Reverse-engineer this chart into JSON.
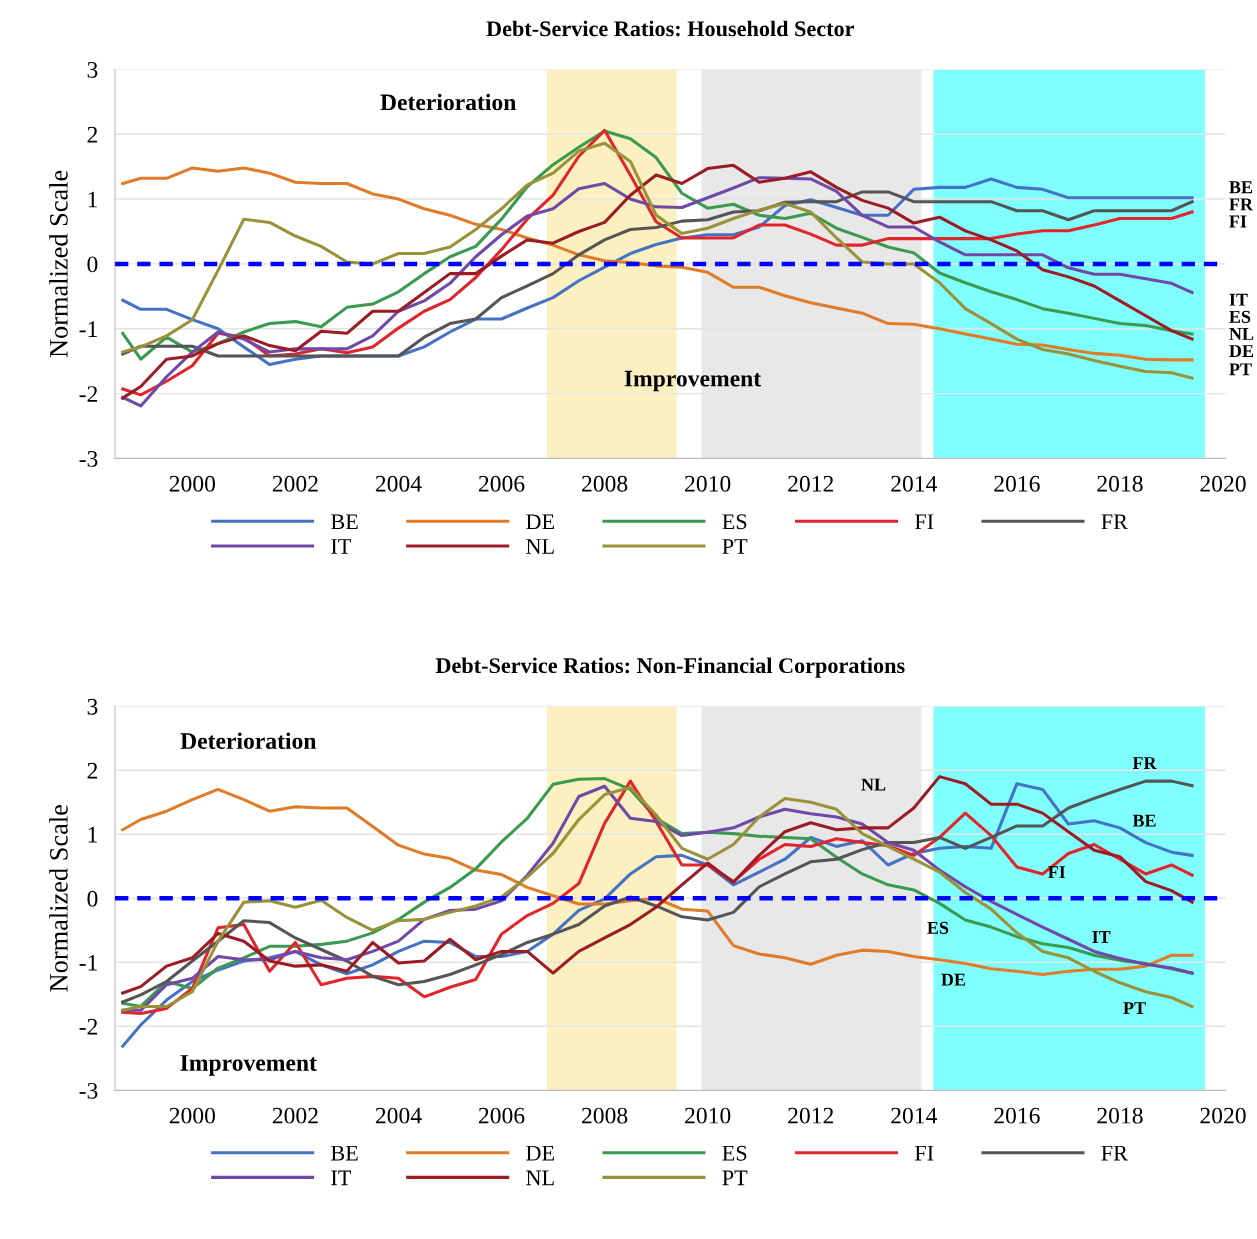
{
  "chart_data": [
    {
      "type": "line",
      "title": "Debt-Service Ratios: Household Sector",
      "ylabel": "Normalized Scale",
      "x": [
        1998.65,
        1999,
        1999.5,
        2000,
        2000.5,
        2001,
        2001.5,
        2002,
        2002.5,
        2003,
        2003.5,
        2004,
        2004.5,
        2005,
        2005.5,
        2006,
        2006.5,
        2007,
        2007.5,
        2008,
        2008.5,
        2009,
        2009.5,
        2010,
        2010.5,
        2011,
        2011.5,
        2012,
        2012.5,
        2013,
        2013.5,
        2014,
        2014.5,
        2015,
        2015.5,
        2016,
        2016.5,
        2017,
        2017.5,
        2018,
        2018.5,
        2019,
        2019.4
      ],
      "series": [
        {
          "name": "BE",
          "color": "#4472c4",
          "values": [
            -0.56,
            -0.7,
            -0.7,
            -0.86,
            -1.0,
            -1.28,
            -1.55,
            -1.47,
            -1.42,
            -1.42,
            -1.42,
            -1.42,
            -1.28,
            -1.05,
            -0.85,
            -0.85,
            -0.68,
            -0.52,
            -0.26,
            -0.05,
            0.16,
            0.3,
            0.4,
            0.45,
            0.45,
            0.57,
            0.9,
            0.99,
            0.87,
            0.75,
            0.75,
            1.15,
            1.18,
            1.18,
            1.31,
            1.18,
            1.15,
            1.02,
            1.02,
            1.02,
            1.02,
            1.02,
            1.02
          ]
        },
        {
          "name": "DE",
          "color": "#e07b28",
          "values": [
            1.24,
            1.32,
            1.32,
            1.48,
            1.43,
            1.48,
            1.4,
            1.26,
            1.24,
            1.24,
            1.08,
            1.0,
            0.85,
            0.75,
            0.61,
            0.53,
            0.4,
            0.29,
            0.14,
            0.05,
            0.02,
            -0.03,
            -0.05,
            -0.13,
            -0.36,
            -0.36,
            -0.49,
            -0.6,
            -0.68,
            -0.76,
            -0.92,
            -0.93,
            -1.0,
            -1.08,
            -1.16,
            -1.24,
            -1.25,
            -1.32,
            -1.38,
            -1.41,
            -1.47,
            -1.48,
            -1.48
          ]
        },
        {
          "name": "ES",
          "color": "#3a9a4f",
          "values": [
            -1.07,
            -1.47,
            -1.13,
            -1.36,
            -1.23,
            -1.05,
            -0.92,
            -0.89,
            -0.97,
            -0.67,
            -0.62,
            -0.43,
            -0.15,
            0.11,
            0.27,
            0.69,
            1.19,
            1.53,
            1.8,
            2.05,
            1.93,
            1.64,
            1.09,
            0.86,
            0.92,
            0.75,
            0.7,
            0.78,
            0.55,
            0.41,
            0.26,
            0.17,
            -0.14,
            -0.29,
            -0.43,
            -0.55,
            -0.69,
            -0.76,
            -0.84,
            -0.92,
            -0.95,
            -1.03,
            -1.08
          ]
        },
        {
          "name": "FI",
          "color": "#e0262a",
          "values": [
            -1.93,
            -2.02,
            -1.81,
            -1.57,
            -1.07,
            -1.13,
            -1.42,
            -1.39,
            -1.31,
            -1.37,
            -1.28,
            -0.99,
            -0.73,
            -0.55,
            -0.21,
            0.22,
            0.69,
            1.06,
            1.66,
            2.06,
            1.37,
            0.65,
            0.4,
            0.4,
            0.4,
            0.6,
            0.6,
            0.46,
            0.29,
            0.29,
            0.39,
            0.39,
            0.39,
            0.39,
            0.39,
            0.46,
            0.51,
            0.51,
            0.6,
            0.7,
            0.7,
            0.7,
            0.8
          ]
        },
        {
          "name": "FR",
          "color": "#555555",
          "values": [
            -1.39,
            -1.27,
            -1.27,
            -1.27,
            -1.42,
            -1.42,
            -1.42,
            -1.42,
            -1.42,
            -1.42,
            -1.42,
            -1.42,
            -1.13,
            -0.92,
            -0.85,
            -0.52,
            -0.34,
            -0.15,
            0.14,
            0.37,
            0.53,
            0.56,
            0.66,
            0.68,
            0.8,
            0.82,
            0.95,
            0.96,
            0.96,
            1.11,
            1.11,
            0.96,
            0.96,
            0.96,
            0.96,
            0.82,
            0.82,
            0.68,
            0.82,
            0.82,
            0.82,
            0.82,
            0.96
          ]
        },
        {
          "name": "IT",
          "color": "#7048a8",
          "values": [
            -2.06,
            -2.19,
            -1.74,
            -1.36,
            -1.05,
            -1.16,
            -1.36,
            -1.31,
            -1.31,
            -1.31,
            -1.11,
            -0.73,
            -0.57,
            -0.3,
            0.11,
            0.45,
            0.74,
            0.85,
            1.16,
            1.24,
            1.0,
            0.88,
            0.87,
            1.02,
            1.17,
            1.33,
            1.32,
            1.31,
            1.12,
            0.75,
            0.57,
            0.57,
            0.34,
            0.14,
            0.14,
            0.14,
            0.14,
            -0.06,
            -0.16,
            -0.16,
            -0.23,
            -0.3,
            -0.44
          ]
        },
        {
          "name": "NL",
          "color": "#9b1c24",
          "values": [
            -2.07,
            -1.89,
            -1.47,
            -1.42,
            -1.23,
            -1.11,
            -1.26,
            -1.34,
            -1.04,
            -1.07,
            -0.73,
            -0.73,
            -0.44,
            -0.15,
            -0.15,
            0.12,
            0.37,
            0.32,
            0.5,
            0.64,
            1.06,
            1.37,
            1.24,
            1.47,
            1.52,
            1.26,
            1.32,
            1.42,
            1.18,
            0.98,
            0.86,
            0.63,
            0.72,
            0.51,
            0.37,
            0.2,
            -0.09,
            -0.2,
            -0.34,
            -0.57,
            -0.8,
            -1.03,
            -1.16
          ]
        },
        {
          "name": "PT",
          "color": "#9a9238",
          "values": [
            -1.36,
            -1.28,
            -1.11,
            -0.86,
            -0.1,
            0.69,
            0.64,
            0.43,
            0.27,
            0.03,
            0.0,
            0.16,
            0.16,
            0.26,
            0.53,
            0.85,
            1.22,
            1.4,
            1.74,
            1.86,
            1.58,
            0.75,
            0.47,
            0.55,
            0.7,
            0.83,
            0.93,
            0.8,
            0.4,
            0.03,
            0.0,
            0.0,
            -0.29,
            -0.69,
            -0.92,
            -1.16,
            -1.32,
            -1.39,
            -1.49,
            -1.58,
            -1.66,
            -1.68,
            -1.76
          ]
        }
      ],
      "xlim": [
        1998.5,
        2020.05
      ],
      "ylim": [
        -3,
        3
      ],
      "xticks": [
        2000,
        2002,
        2004,
        2006,
        2008,
        2010,
        2012,
        2014,
        2016,
        2018,
        2020
      ],
      "yticks": [
        -3,
        -2,
        -1,
        0,
        1,
        2,
        3
      ],
      "ref_lines": [
        {
          "axis": "y",
          "value": 0,
          "color": "#0000ff",
          "line_style": "dashed"
        }
      ],
      "bands": [
        {
          "axis": "x",
          "from": 2006.88,
          "to": 2009.4,
          "color": "#fdf0c0"
        },
        {
          "axis": "x",
          "from": 2009.88,
          "to": 2014.15,
          "color": "#e8e8e8"
        },
        {
          "axis": "x",
          "from": 2014.38,
          "to": 2019.65,
          "color": "#80ffff"
        }
      ],
      "annotations": [
        "Deterioration",
        "Improvement"
      ],
      "grid": "y",
      "legend": "bottom",
      "line_style": "solid",
      "marker": "none"
    },
    {
      "type": "line",
      "title": "Debt-Service Ratios: Non-Financial Corporations",
      "ylabel": "Normalized Scale",
      "x": [
        1998.65,
        1999,
        1999.5,
        2000,
        2000.5,
        2001,
        2001.5,
        2002,
        2002.5,
        2003,
        2003.5,
        2004,
        2004.5,
        2005,
        2005.5,
        2006,
        2006.5,
        2007,
        2007.5,
        2008,
        2008.5,
        2009,
        2009.5,
        2010,
        2010.5,
        2011,
        2011.5,
        2012,
        2012.5,
        2013,
        2013.5,
        2014,
        2014.5,
        2015,
        2015.5,
        2016,
        2016.5,
        2017,
        2017.5,
        2018,
        2018.5,
        2019,
        2019.4
      ],
      "series": [
        {
          "name": "BE",
          "color": "#4472c4",
          "values": [
            -2.31,
            -1.98,
            -1.59,
            -1.3,
            -1.12,
            -0.98,
            -0.93,
            -0.83,
            -1.04,
            -1.18,
            -1.04,
            -0.83,
            -0.67,
            -0.69,
            -0.91,
            -0.91,
            -0.83,
            -0.56,
            -0.19,
            -0.01,
            0.38,
            0.65,
            0.67,
            0.52,
            0.21,
            0.41,
            0.61,
            0.95,
            0.81,
            0.9,
            0.52,
            0.7,
            0.78,
            0.81,
            0.78,
            1.79,
            1.7,
            1.16,
            1.21,
            1.1,
            0.87,
            0.72,
            0.67
          ]
        },
        {
          "name": "DE",
          "color": "#e07b28",
          "values": [
            1.07,
            1.23,
            1.36,
            1.54,
            1.7,
            1.54,
            1.36,
            1.43,
            1.41,
            1.41,
            1.12,
            0.83,
            0.69,
            0.62,
            0.44,
            0.37,
            0.17,
            0.04,
            -0.09,
            -0.09,
            -0.04,
            0.0,
            -0.17,
            -0.2,
            -0.74,
            -0.87,
            -0.93,
            -1.03,
            -0.89,
            -0.81,
            -0.83,
            -0.91,
            -0.96,
            -1.02,
            -1.1,
            -1.14,
            -1.19,
            -1.14,
            -1.11,
            -1.11,
            -1.06,
            -0.89,
            -0.89
          ]
        },
        {
          "name": "ES",
          "color": "#3a9a4f",
          "values": [
            -1.64,
            -1.69,
            -1.3,
            -1.41,
            -1.09,
            -0.93,
            -0.75,
            -0.75,
            -0.72,
            -0.67,
            -0.54,
            -0.33,
            -0.06,
            0.17,
            0.46,
            0.88,
            1.25,
            1.78,
            1.86,
            1.87,
            1.7,
            1.25,
            1.01,
            1.03,
            1.01,
            0.97,
            0.95,
            0.93,
            0.64,
            0.38,
            0.21,
            0.13,
            -0.08,
            -0.34,
            -0.45,
            -0.6,
            -0.71,
            -0.77,
            -0.89,
            -0.97,
            -1.02,
            -1.1,
            -1.17
          ]
        },
        {
          "name": "FI",
          "color": "#e0262a",
          "values": [
            -1.78,
            -1.8,
            -1.72,
            -1.41,
            -0.46,
            -0.41,
            -1.14,
            -0.69,
            -1.35,
            -1.25,
            -1.22,
            -1.25,
            -1.54,
            -1.39,
            -1.27,
            -0.56,
            -0.27,
            -0.08,
            0.23,
            1.17,
            1.83,
            1.2,
            0.52,
            0.52,
            0.26,
            0.61,
            0.84,
            0.81,
            0.93,
            0.87,
            0.82,
            0.67,
            0.95,
            1.33,
            0.98,
            0.49,
            0.38,
            0.7,
            0.84,
            0.61,
            0.38,
            0.52,
            0.36
          ]
        },
        {
          "name": "FR",
          "color": "#555555",
          "values": [
            -1.62,
            -1.51,
            -1.3,
            -0.98,
            -0.67,
            -0.35,
            -0.38,
            -0.62,
            -0.8,
            -0.98,
            -1.22,
            -1.35,
            -1.3,
            -1.19,
            -1.04,
            -0.88,
            -0.69,
            -0.56,
            -0.41,
            -0.12,
            0.02,
            -0.12,
            -0.29,
            -0.34,
            -0.22,
            0.18,
            0.38,
            0.57,
            0.61,
            0.76,
            0.87,
            0.87,
            0.95,
            0.78,
            0.95,
            1.13,
            1.13,
            1.41,
            1.56,
            1.7,
            1.83,
            1.83,
            1.76
          ]
        },
        {
          "name": "IT",
          "color": "#7048a8",
          "values": [
            -1.75,
            -1.75,
            -1.35,
            -1.25,
            -0.91,
            -0.96,
            -0.96,
            -0.83,
            -0.93,
            -0.96,
            -0.83,
            -0.67,
            -0.33,
            -0.19,
            -0.17,
            -0.04,
            0.36,
            0.86,
            1.59,
            1.75,
            1.25,
            1.2,
            0.98,
            1.03,
            1.1,
            1.27,
            1.39,
            1.32,
            1.27,
            1.16,
            0.87,
            0.75,
            0.44,
            0.18,
            -0.05,
            -0.25,
            -0.45,
            -0.64,
            -0.83,
            -0.94,
            -1.03,
            -1.09,
            -1.17
          ]
        },
        {
          "name": "NL",
          "color": "#9b1c24",
          "values": [
            -1.48,
            -1.38,
            -1.06,
            -0.93,
            -0.55,
            -0.67,
            -0.98,
            -1.06,
            -1.04,
            -1.14,
            -0.69,
            -1.01,
            -0.98,
            -0.64,
            -0.96,
            -0.83,
            -0.83,
            -1.17,
            -0.83,
            -0.62,
            -0.41,
            -0.14,
            0.21,
            0.55,
            0.25,
            0.67,
            1.04,
            1.18,
            1.07,
            1.1,
            1.1,
            1.41,
            1.9,
            1.79,
            1.47,
            1.47,
            1.33,
            1.04,
            0.75,
            0.65,
            0.26,
            0.12,
            -0.06
          ]
        },
        {
          "name": "PT",
          "color": "#9a9238",
          "values": [
            -1.75,
            -1.69,
            -1.69,
            -1.46,
            -0.67,
            -0.06,
            -0.04,
            -0.14,
            -0.03,
            -0.3,
            -0.5,
            -0.35,
            -0.33,
            -0.22,
            -0.12,
            0.02,
            0.33,
            0.7,
            1.23,
            1.62,
            1.73,
            1.3,
            0.78,
            0.61,
            0.84,
            1.27,
            1.56,
            1.5,
            1.39,
            1.01,
            0.81,
            0.61,
            0.41,
            0.09,
            -0.17,
            -0.54,
            -0.83,
            -0.93,
            -1.14,
            -1.32,
            -1.46,
            -1.55,
            -1.69
          ]
        }
      ],
      "xlim": [
        1998.5,
        2020.05
      ],
      "ylim": [
        -3,
        3
      ],
      "xticks": [
        2000,
        2002,
        2004,
        2006,
        2008,
        2010,
        2012,
        2014,
        2016,
        2018,
        2020
      ],
      "yticks": [
        -3,
        -2,
        -1,
        0,
        1,
        2,
        3
      ],
      "ref_lines": [
        {
          "axis": "y",
          "value": 0,
          "color": "#0000ff",
          "line_style": "dashed"
        }
      ],
      "bands": [
        {
          "axis": "x",
          "from": 2006.88,
          "to": 2009.4,
          "color": "#fdf0c0"
        },
        {
          "axis": "x",
          "from": 2009.88,
          "to": 2014.15,
          "color": "#e8e8e8"
        },
        {
          "axis": "x",
          "from": 2014.38,
          "to": 2019.65,
          "color": "#80ffff"
        }
      ],
      "annotations": [
        "Deterioration",
        "Improvement"
      ],
      "grid": "y",
      "legend": "bottom",
      "line_style": "solid",
      "marker": "none"
    }
  ]
}
